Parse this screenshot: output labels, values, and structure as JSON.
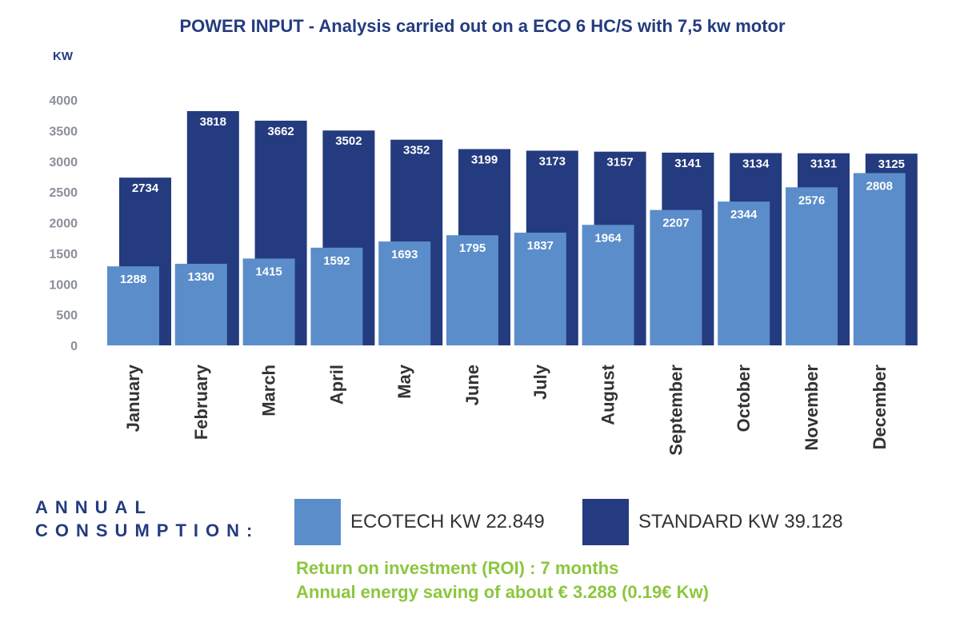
{
  "colors": {
    "ecotech": "#5b8dca",
    "standard": "#243b7f",
    "title": "#243b7f",
    "axis_text": "#8a8f99",
    "month_text": "#333333",
    "note": "#8dc63f"
  },
  "chart_data": {
    "type": "bar",
    "title": "POWER INPUT - Analysis carried out on a ECO 6 HC/S with 7,5 kw motor",
    "ylabel": "KW",
    "ylim": [
      0,
      4000
    ],
    "yticks": [
      0,
      500,
      1000,
      1500,
      2000,
      2500,
      3000,
      3500,
      4000
    ],
    "categories": [
      "January",
      "February",
      "March",
      "April",
      "May",
      "June",
      "July",
      "August",
      "September",
      "October",
      "November",
      "December"
    ],
    "series": [
      {
        "name": "STANDARD",
        "values": [
          2734,
          3818,
          3662,
          3502,
          3352,
          3199,
          3173,
          3157,
          3141,
          3134,
          3131,
          3125
        ]
      },
      {
        "name": "ECOTECH",
        "values": [
          1288,
          1330,
          1415,
          1592,
          1693,
          1795,
          1837,
          1964,
          2207,
          2344,
          2576,
          2808
        ]
      }
    ]
  },
  "summary": {
    "annual_line1": "ANNUAL",
    "annual_line2": "CONSUMPTION:",
    "legend_ecotech": "ECOTECH KW 22.849",
    "legend_standard": "STANDARD KW 39.128",
    "roi": "Return on investment (ROI) : 7 months",
    "saving": "Annual energy saving of about € 3.288 (0.19€ Kw)"
  }
}
